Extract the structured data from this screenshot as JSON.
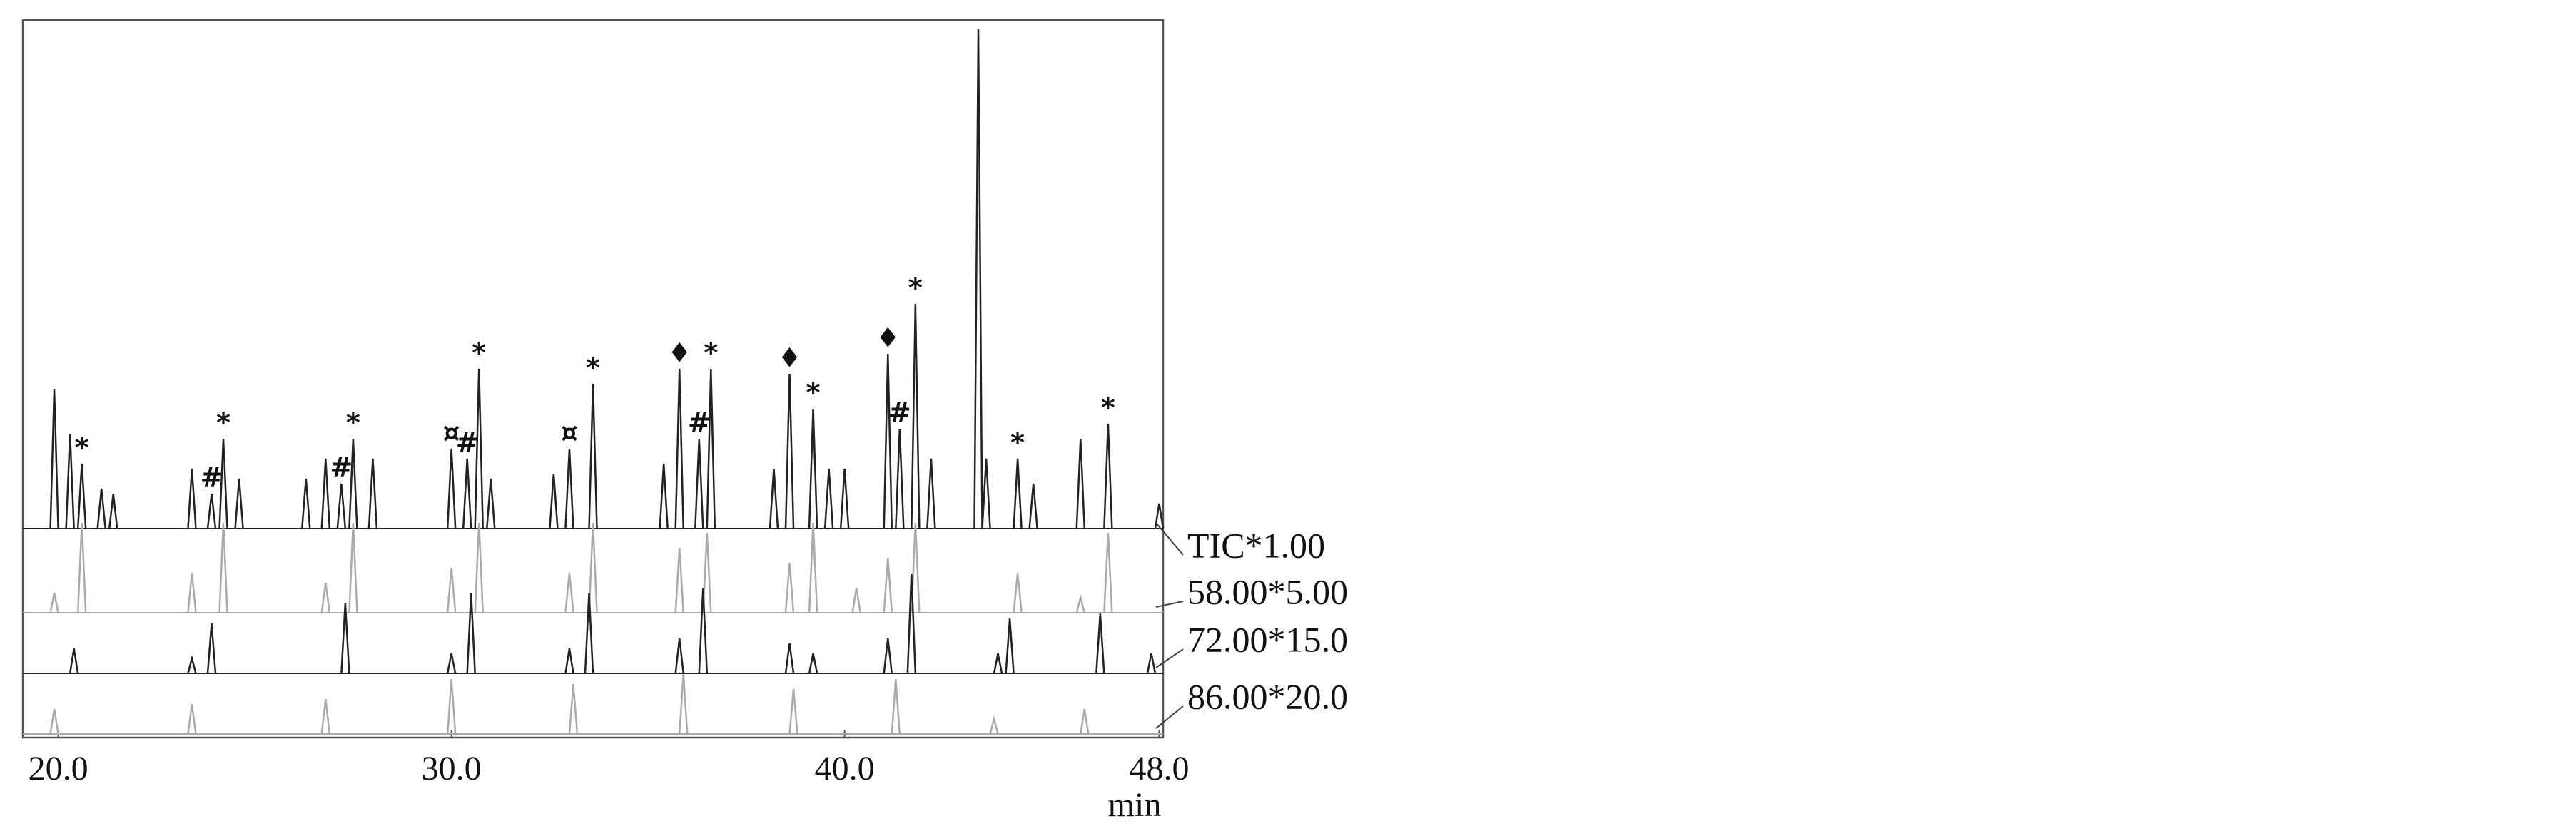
{
  "chart_data": {
    "type": "chromatogram",
    "xlabel": "min",
    "xlim": [
      19.1,
      48.1
    ],
    "xticks": [
      {
        "value": 20,
        "label": "20.0"
      },
      {
        "value": 30,
        "label": "30.0"
      },
      {
        "value": 40,
        "label": "40.0"
      },
      {
        "value": 48,
        "label": "48.0"
      }
    ],
    "ylim": [
      0,
      100
    ],
    "series": [
      {
        "name": "TIC*1.00",
        "color": "#222222",
        "x": [
          19.9,
          20.3,
          20.6,
          21.1,
          21.4,
          23.4,
          23.9,
          24.2,
          24.6,
          26.3,
          26.8,
          27.2,
          27.5,
          28.0,
          30.0,
          30.4,
          30.7,
          31.0,
          32.6,
          33.0,
          33.6,
          35.4,
          35.8,
          36.3,
          36.6,
          38.2,
          38.6,
          39.2,
          39.6,
          40.0,
          41.1,
          41.4,
          41.8,
          42.2,
          43.4,
          43.6,
          44.4,
          44.8,
          46.0,
          46.7,
          48.0
        ],
        "values": [
          28,
          19,
          13,
          8,
          7,
          12,
          7,
          18,
          10,
          10,
          14,
          9,
          18,
          14,
          16,
          14,
          32,
          10,
          11,
          16,
          29,
          13,
          32,
          18,
          32,
          12,
          31,
          24,
          12,
          12,
          35,
          20,
          45,
          14,
          100,
          14,
          14,
          9,
          18,
          21,
          5
        ]
      },
      {
        "name": "58.00*5.00",
        "color": "#aaaaaa",
        "x": [
          19.9,
          20.6,
          23.4,
          24.2,
          26.8,
          27.5,
          30.0,
          30.7,
          33.0,
          33.6,
          35.8,
          36.5,
          38.6,
          39.2,
          40.3,
          41.1,
          41.8,
          44.4,
          46.0,
          46.7
        ],
        "values": [
          4,
          18,
          8,
          18,
          6,
          18,
          9,
          18,
          8,
          18,
          13,
          16,
          10,
          18,
          5,
          11,
          18,
          8,
          3,
          16
        ]
      },
      {
        "name": "72.00*15.0",
        "color": "#222222",
        "x": [
          20.4,
          23.4,
          23.9,
          27.3,
          30.0,
          30.5,
          33.0,
          33.5,
          35.8,
          36.4,
          38.6,
          39.2,
          41.1,
          41.7,
          43.9,
          44.2,
          46.5,
          47.8
        ],
        "values": [
          5,
          3,
          10,
          14,
          4,
          16,
          5,
          16,
          7,
          17,
          6,
          4,
          7,
          20,
          4,
          11,
          12,
          4
        ]
      },
      {
        "name": "86.00*20.0",
        "color": "#aaaaaa",
        "x": [
          19.9,
          23.4,
          26.8,
          30.0,
          33.1,
          35.9,
          38.7,
          41.3,
          43.8,
          46.1
        ],
        "values": [
          5,
          6,
          7,
          11,
          10,
          12,
          9,
          11,
          3,
          5
        ]
      }
    ],
    "annotations": [
      {
        "text": "*",
        "x": 20.6,
        "y": 13
      },
      {
        "text": "#",
        "x": 23.9,
        "y": 7
      },
      {
        "text": "*",
        "x": 24.2,
        "y": 18
      },
      {
        "text": "#",
        "x": 27.2,
        "y": 9
      },
      {
        "text": "*",
        "x": 27.5,
        "y": 18
      },
      {
        "text": "¤",
        "x": 30.0,
        "y": 16
      },
      {
        "text": "#",
        "x": 30.4,
        "y": 14
      },
      {
        "text": "*",
        "x": 30.7,
        "y": 32
      },
      {
        "text": "¤",
        "x": 33.0,
        "y": 16
      },
      {
        "text": "*",
        "x": 33.6,
        "y": 29
      },
      {
        "text": "♦",
        "x": 35.8,
        "y": 32
      },
      {
        "text": "#",
        "x": 36.3,
        "y": 18
      },
      {
        "text": "*",
        "x": 36.6,
        "y": 32
      },
      {
        "text": "♦",
        "x": 38.6,
        "y": 31
      },
      {
        "text": "*",
        "x": 39.2,
        "y": 24
      },
      {
        "text": "♦",
        "x": 41.1,
        "y": 35
      },
      {
        "text": "#",
        "x": 41.4,
        "y": 20
      },
      {
        "text": "*",
        "x": 41.8,
        "y": 45
      },
      {
        "text": "*",
        "x": 44.4,
        "y": 14
      },
      {
        "text": "*",
        "x": 46.7,
        "y": 21
      }
    ]
  }
}
